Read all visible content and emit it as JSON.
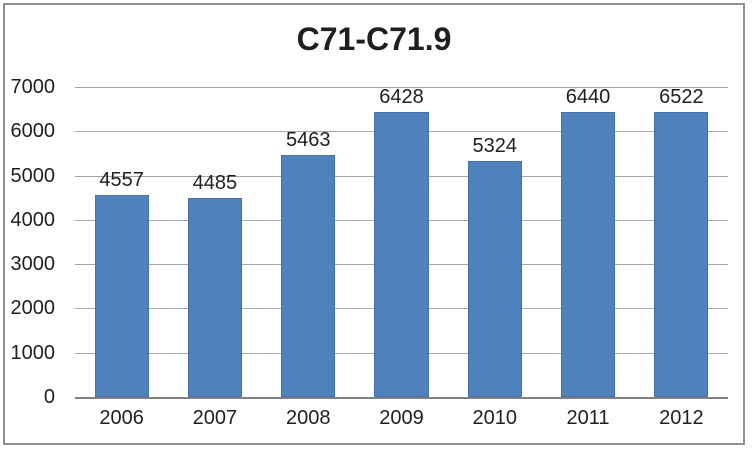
{
  "chart_data": {
    "type": "bar",
    "title": "C71-C71.9",
    "categories": [
      "2006",
      "2007",
      "2008",
      "2009",
      "2010",
      "2011",
      "2012"
    ],
    "values": [
      4557,
      4485,
      5463,
      6428,
      5324,
      6440,
      6522
    ],
    "xlabel": "",
    "ylabel": "",
    "ylim": [
      0,
      7000
    ],
    "yticks": [
      0,
      1000,
      2000,
      3000,
      4000,
      5000,
      6000,
      7000
    ],
    "grid": true,
    "legend_position": "none",
    "data_labels": true,
    "bar_color": "#4F81BD",
    "gridline_color": "#a6a6a6",
    "axis_line_color": "#808080",
    "text_color": "#1f1f1f",
    "background_color": "#ffffff",
    "frame_border_color": "#8f8f8f"
  }
}
